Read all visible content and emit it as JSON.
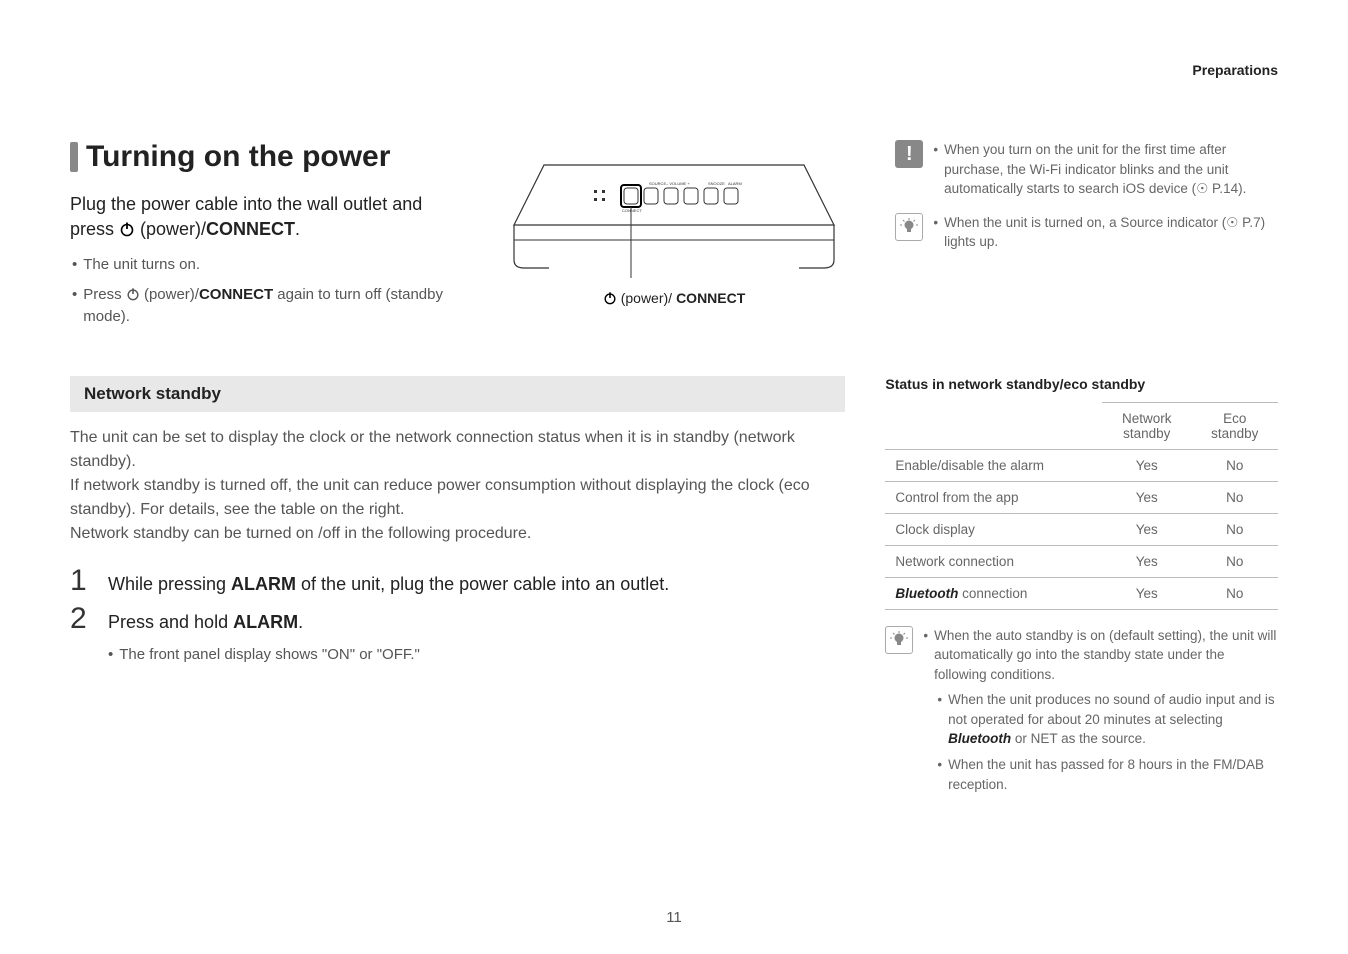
{
  "header": {
    "section": "Preparations"
  },
  "title": "Turning on the power",
  "power_instructions": {
    "subheading_parts": [
      "Plug the power cable into the wall outlet and press ",
      " (power)/",
      "CONNECT",
      "."
    ],
    "bullets": [
      {
        "text": "The unit turns on."
      },
      {
        "parts": [
          "Press ",
          " (power)/",
          "CONNECT",
          " again to turn off (standby mode)."
        ]
      }
    ]
  },
  "device_caption": {
    "parts": [
      " (power)/",
      "CONNECT"
    ]
  },
  "notes_top": {
    "warn": "When you turn on the unit for the first time after purchase, the Wi-Fi indicator blinks and the unit automatically starts to search iOS device (& P.14).",
    "tip": "When the unit is turned on, a Source indicator (& P.7) lights up."
  },
  "network_standby": {
    "heading": "Network standby",
    "body": "The unit can be set to display the clock or the network connection status when it is in standby (network standby).\nIf network standby is turned off, the unit can reduce power consumption without displaying the clock (eco standby). For details, see the table on the right.\nNetwork standby can be turned on /off in the following procedure.",
    "steps": [
      {
        "num": "1",
        "parts": [
          "While pressing ",
          "ALARM",
          " of the unit, plug the power cable into an outlet."
        ]
      },
      {
        "num": "2",
        "parts": [
          "Press and hold ",
          "ALARM",
          "."
        ]
      }
    ],
    "substep": "The front panel display shows \"ON\" or \"OFF.\""
  },
  "status_table": {
    "title": "Status in network standby/eco standby",
    "columns": [
      "",
      "Network standby",
      "Eco standby"
    ],
    "rows": [
      [
        "Enable/disable the alarm",
        "Yes",
        "No"
      ],
      [
        "Control from the app",
        "Yes",
        "No"
      ],
      [
        "Clock display",
        "Yes",
        "No"
      ],
      [
        "Network connection",
        "Yes",
        "No"
      ],
      [
        "__BT__ connection",
        "Yes",
        "No"
      ]
    ]
  },
  "auto_standby_note": {
    "lead": "When the auto standby is on (default setting), the unit will automatically go into the standby state under the following conditions.",
    "subs": [
      "When the unit produces no sound of audio input and is not operated for about 20 minutes at selecting __BT__ or NET as the source.",
      "When the unit has passed for 8 hours in the FM/DAB reception."
    ]
  },
  "page_number": "11",
  "colors": {
    "bar": "#888888",
    "text_muted": "#666666",
    "heading_bg": "#e8e8e8",
    "border": "#bbbbbb"
  }
}
